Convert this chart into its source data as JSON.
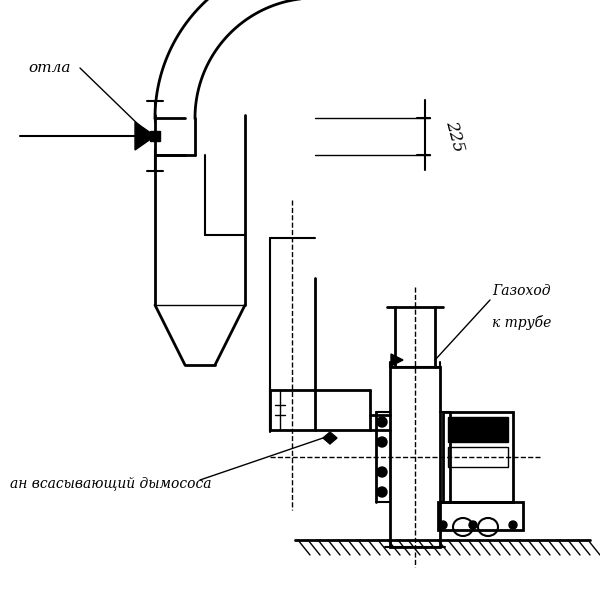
{
  "bg_color": "#ffffff",
  "line_color": "#000000",
  "text_kotla": "отла",
  "text_gazohod1": "Газоход",
  "text_gazohod2": "к трубе",
  "text_vsan": "ан всасывающий дымососа",
  "text_dim": "225",
  "fig_width": 6.0,
  "fig_height": 6.0,
  "dpi": 100
}
